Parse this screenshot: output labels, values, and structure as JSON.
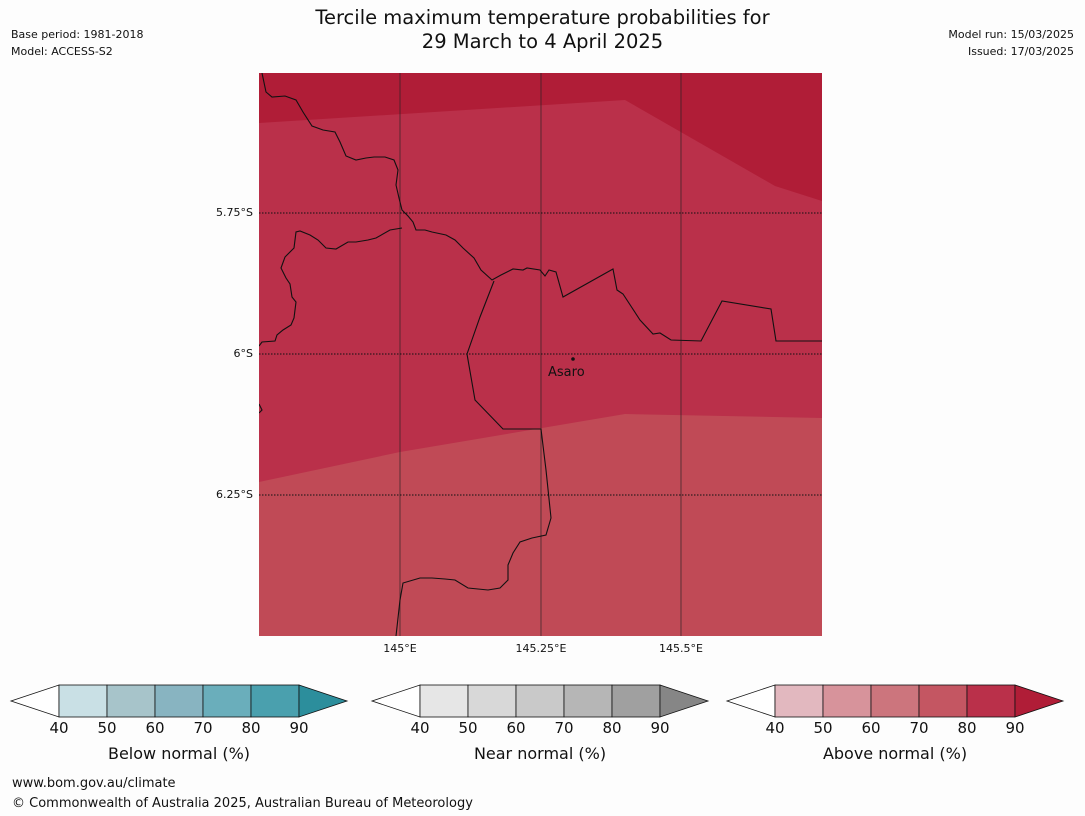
{
  "title_line1": "Tercile maximum temperature probabilities for",
  "title_line2": "29 March to 4 April 2025",
  "meta_left": [
    "Base period: 1981-2018",
    "Model: ACCESS-S2"
  ],
  "meta_right": [
    "Model run: 15/03/2025",
    "Issued: 17/03/2025"
  ],
  "lat_labels": [
    "5.75°S",
    "6°S",
    "6.25°S"
  ],
  "lon_labels": [
    "145°E",
    "145.25°E",
    "145.5°E"
  ],
  "place_label": "Asaro",
  "colors": {
    "below": [
      "#c9e0e5",
      "#a7c4ca",
      "#88b4c1",
      "#6aaebb",
      "#4aa0ae",
      "#2c8e9c"
    ],
    "near": [
      "#e6e6e6",
      "#d8d8d8",
      "#c9c9c9",
      "#b6b6b6",
      "#a0a0a0",
      "#868686"
    ],
    "above": [
      "#e2b8bf",
      "#d7939b",
      "#cc757d",
      "#c45662",
      "#ba304a",
      "#b01d37"
    ],
    "map_80_90": "#ba304a",
    "map_90plus": "#b01d37",
    "map_70_80": "#c04a56"
  },
  "colorbars": [
    {
      "label": "Below normal (%)",
      "ticks": [
        "40",
        "50",
        "60",
        "70",
        "80",
        "90"
      ]
    },
    {
      "label": "Near normal (%)",
      "ticks": [
        "40",
        "50",
        "60",
        "70",
        "80",
        "90"
      ]
    },
    {
      "label": "Above normal (%)",
      "ticks": [
        "40",
        "50",
        "60",
        "70",
        "80",
        "90"
      ]
    }
  ],
  "footer": [
    "www.bom.gov.au/climate",
    "© Commonwealth of Australia 2025, Australian Bureau of Meteorology"
  ]
}
